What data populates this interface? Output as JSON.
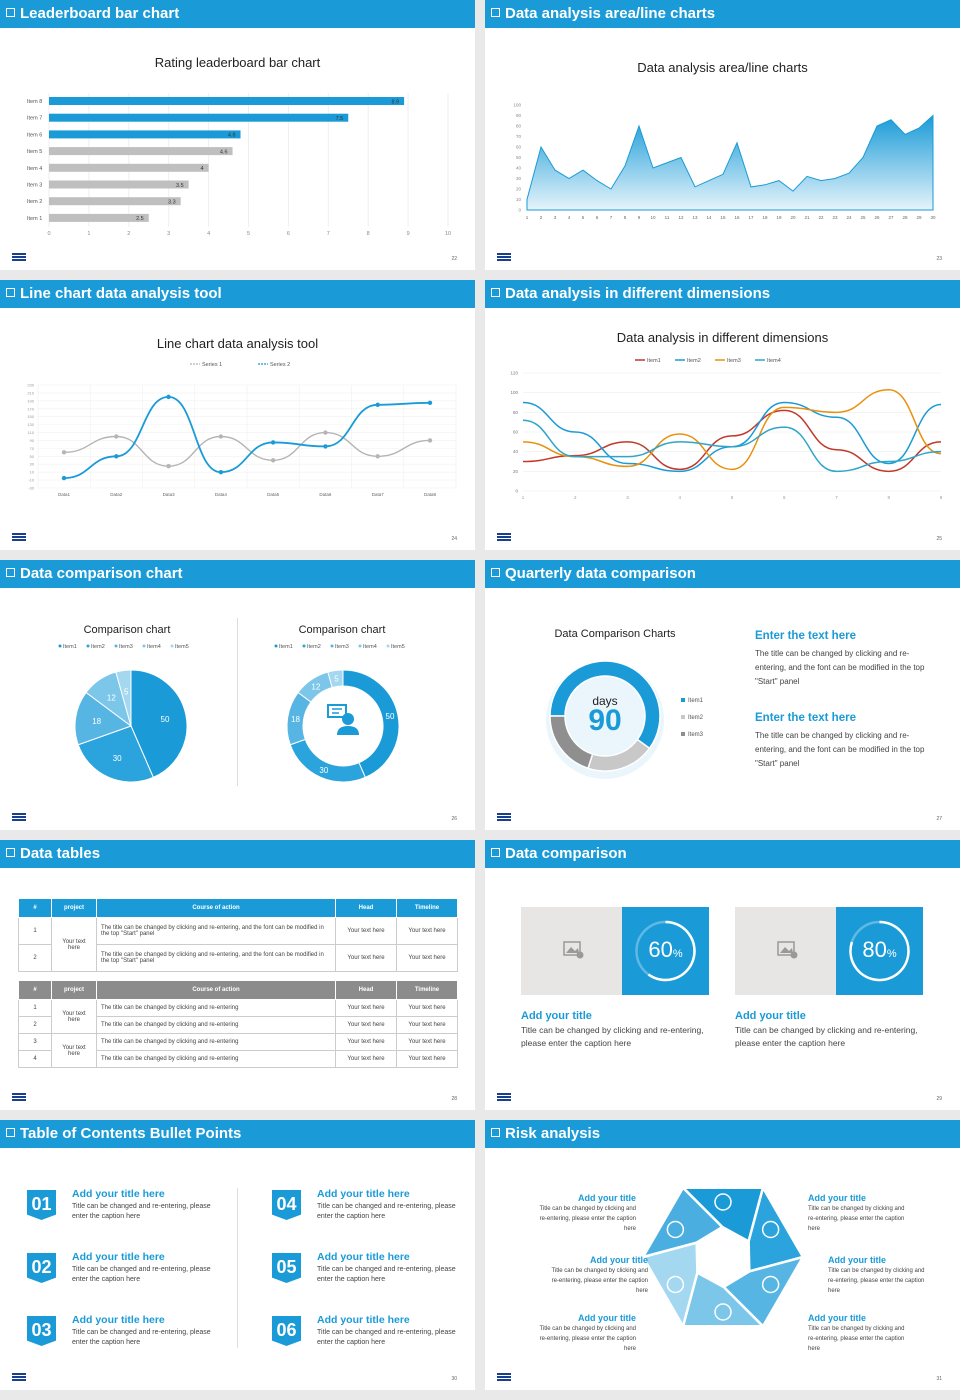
{
  "slides": {
    "s22": {
      "header": "Leaderboard bar chart",
      "title": "Rating leaderboard bar chart",
      "page": "22"
    },
    "s23": {
      "header": "Data analysis area/line charts",
      "title": "Data analysis area/line charts",
      "page": "23"
    },
    "s24": {
      "header": "Line chart data analysis tool",
      "title": "Line chart data analysis tool",
      "page": "24",
      "legend": [
        "Series 1",
        "Series 2"
      ]
    },
    "s25": {
      "header": "Data analysis in different dimensions",
      "title": "Data analysis in different dimensions",
      "page": "25",
      "legend": [
        "Item1",
        "Item2",
        "Item3",
        "Item4"
      ]
    },
    "s26": {
      "header": "Data comparison chart",
      "page": "26",
      "chart_title": "Comparison chart",
      "legend": [
        "Item1",
        "Item2",
        "Item3",
        "Item4",
        "Item5"
      ]
    },
    "s27": {
      "header": "Quarterly data comparison",
      "page": "27",
      "chart_title": "Data Comparison Charts",
      "center_label": "days",
      "center_value": "90",
      "legend": [
        "Item1",
        "Item2",
        "Item3"
      ],
      "blocks": [
        {
          "title": "Enter the text here",
          "text": "The title can be changed by clicking and re-entering, and the font can be modified in the top \"Start\" panel"
        },
        {
          "title": "Enter the text here",
          "text": "The title can be changed by clicking and re-entering, and the font can be modified in the top \"Start\" panel"
        }
      ]
    },
    "s28": {
      "header": "Data tables",
      "page": "28",
      "table1": {
        "headers": [
          "#",
          "project",
          "Course of action",
          "Head",
          "Timeline"
        ],
        "rows": [
          {
            "num": "1",
            "text": "The title can be changed by clicking and re-entering, and the font can be modified in the top \"Start\" panel",
            "head": "Your text here",
            "time": "Your text here"
          },
          {
            "num": "2",
            "text": "The title can be changed by clicking and re-entering, and the font can be modified in the top \"Start\" panel",
            "head": "Your text here",
            "time": "Your text here"
          }
        ],
        "project": "Your text here"
      },
      "table2": {
        "headers": [
          "#",
          "project",
          "Course of action",
          "Head",
          "Timeline"
        ],
        "rows": [
          {
            "num": "1",
            "text": "The title can be changed by clicking and re-entering",
            "head": "Your text here",
            "time": "Your text here"
          },
          {
            "num": "2",
            "text": "The title can be changed by clicking and re-entering",
            "head": "Your text here",
            "time": "Your text here"
          },
          {
            "num": "3",
            "text": "The title can be changed by clicking and re-entering",
            "head": "Your text here",
            "time": "Your text here"
          },
          {
            "num": "4",
            "text": "The title can be changed by clicking and re-entering",
            "head": "Your text here",
            "time": "Your text here"
          }
        ],
        "project_a": "Your text here",
        "project_b": "Your text here"
      }
    },
    "s29": {
      "header": "Data comparison",
      "page": "29",
      "cards": [
        {
          "percent": "60",
          "unit": "%",
          "progress": 0.6,
          "title": "Add your title",
          "text": "Title can be changed by clicking and re-entering, please enter the caption here"
        },
        {
          "percent": "80",
          "unit": "%",
          "progress": 0.8,
          "title": "Add your title",
          "text": "Title can be changed by clicking and re-entering, please enter the caption here"
        }
      ]
    },
    "s30": {
      "header": "Table of Contents Bullet Points",
      "page": "30",
      "items": [
        {
          "num": "01",
          "title": "Add your title here",
          "text": "Title can be changed and re-entering, please enter the caption here"
        },
        {
          "num": "02",
          "title": "Add your title here",
          "text": "Title can be changed and re-entering, please enter the caption here"
        },
        {
          "num": "03",
          "title": "Add your title here",
          "text": "Title can be changed and re-entering, please enter the caption here"
        },
        {
          "num": "04",
          "title": "Add your title here",
          "text": "Title can be changed and re-entering, please enter the caption here"
        },
        {
          "num": "05",
          "title": "Add your title here",
          "text": "Title can be changed and re-entering, please enter the caption here"
        },
        {
          "num": "06",
          "title": "Add your title here",
          "text": "Title can be changed and re-entering, please enter the caption here"
        }
      ]
    },
    "s31": {
      "header": "Risk analysis",
      "page": "31",
      "items": [
        {
          "title": "Add your title",
          "text": "Title can be changed by clicking and re-entering, please enter the caption here"
        },
        {
          "title": "Add your title",
          "text": "Title can be changed by clicking and re-entering, please enter the caption here"
        },
        {
          "title": "Add your title",
          "text": "Title can be changed by clicking and re-entering, please enter the caption here"
        },
        {
          "title": "Add your title",
          "text": "Title can be changed by clicking and re-entering, please enter the caption here"
        },
        {
          "title": "Add your title",
          "text": "Title can be changed by clicking and re-entering, please enter the caption here"
        },
        {
          "title": "Add your title",
          "text": "Title can be changed by clicking and re-entering, please enter the caption here"
        }
      ]
    }
  },
  "colors": {
    "accent": "#1a9bd7",
    "gray": "#bfbfbf",
    "dark_gray": "#7f7f7f"
  },
  "chart_data": [
    {
      "type": "bar",
      "orientation": "horizontal",
      "title": "Rating leaderboard bar chart",
      "categories": [
        "Item 1",
        "Item 2",
        "Item 3",
        "Item 4",
        "Item 5",
        "Item 6",
        "Item 7",
        "Item 8"
      ],
      "values": [
        2.5,
        3.3,
        3.5,
        4,
        4.6,
        4.8,
        7.5,
        8.9
      ],
      "xlim": [
        0,
        10
      ],
      "xticks": [
        "0",
        "1",
        "2",
        "3",
        "4",
        "5",
        "6",
        "7",
        "8",
        "9",
        "10"
      ],
      "grid": true
    },
    {
      "type": "area",
      "title": "Data analysis area/line charts",
      "x": [
        "1",
        "2",
        "3",
        "4",
        "5",
        "6",
        "7",
        "8",
        "9",
        "10",
        "11",
        "12",
        "13",
        "14",
        "15",
        "16",
        "17",
        "18",
        "19",
        "20",
        "21",
        "22",
        "23",
        "24",
        "25",
        "26",
        "27",
        "28",
        "29",
        "30"
      ],
      "values": [
        10,
        60,
        38,
        30,
        38,
        28,
        20,
        42,
        80,
        40,
        45,
        50,
        22,
        28,
        34,
        64,
        22,
        24,
        28,
        18,
        32,
        28,
        30,
        35,
        50,
        80,
        86,
        72,
        78,
        90
      ],
      "ylim": [
        0,
        100
      ],
      "yticks": [
        "0",
        "10",
        "20",
        "30",
        "40",
        "50",
        "60",
        "70",
        "80",
        "90",
        "100"
      ]
    },
    {
      "type": "line",
      "title": "Line chart data analysis tool",
      "categories": [
        "Data1",
        "Data2",
        "Data3",
        "Data4",
        "Data5",
        "Data6",
        "Data7",
        "Data8"
      ],
      "series": [
        {
          "name": "Series 1",
          "values": [
            60,
            100,
            25,
            100,
            40,
            110,
            50,
            90
          ]
        },
        {
          "name": "Series 2",
          "values": [
            -5,
            50,
            200,
            10,
            85,
            75,
            180,
            185
          ]
        }
      ],
      "ylim": [
        -30,
        230
      ],
      "yticks": [
        "-30",
        "-10",
        "10",
        "30",
        "50",
        "70",
        "90",
        "110",
        "130",
        "150",
        "170",
        "190",
        "210",
        "230"
      ]
    },
    {
      "type": "line",
      "title": "Data analysis in different dimensions",
      "x": [
        "1",
        "2",
        "3",
        "4",
        "5",
        "6",
        "7",
        "8",
        "9"
      ],
      "series": [
        {
          "name": "Item1",
          "values": [
            30,
            36,
            50,
            22,
            56,
            82,
            42,
            20,
            50
          ],
          "color": "#c0392b"
        },
        {
          "name": "Item2",
          "values": [
            90,
            60,
            28,
            20,
            45,
            90,
            75,
            28,
            88
          ],
          "color": "#1a9bd7"
        },
        {
          "name": "Item3",
          "values": [
            50,
            35,
            25,
            58,
            22,
            85,
            80,
            103,
            38
          ],
          "color": "#e8910f"
        },
        {
          "name": "Item4",
          "values": [
            72,
            35,
            35,
            50,
            45,
            65,
            20,
            30,
            40
          ],
          "color": "#2ea5c9"
        }
      ],
      "ylim": [
        0,
        120
      ],
      "yticks": [
        "0",
        "20",
        "40",
        "60",
        "80",
        "100",
        "120"
      ]
    },
    {
      "type": "pie",
      "title": "Comparison chart",
      "labels": [
        "Item1",
        "Item2",
        "Item3",
        "Item4",
        "Item5"
      ],
      "values": [
        50,
        30,
        18,
        12,
        5
      ]
    },
    {
      "type": "pie",
      "variant": "donut",
      "title": "Comparison chart",
      "labels": [
        "Item1",
        "Item2",
        "Item3",
        "Item4",
        "Item5"
      ],
      "values": [
        50,
        30,
        18,
        12,
        5
      ]
    },
    {
      "type": "pie",
      "variant": "donut",
      "title": "Data Comparison Charts",
      "labels": [
        "Item1",
        "Item2",
        "Item3"
      ],
      "values": [
        60,
        20,
        20
      ]
    }
  ]
}
